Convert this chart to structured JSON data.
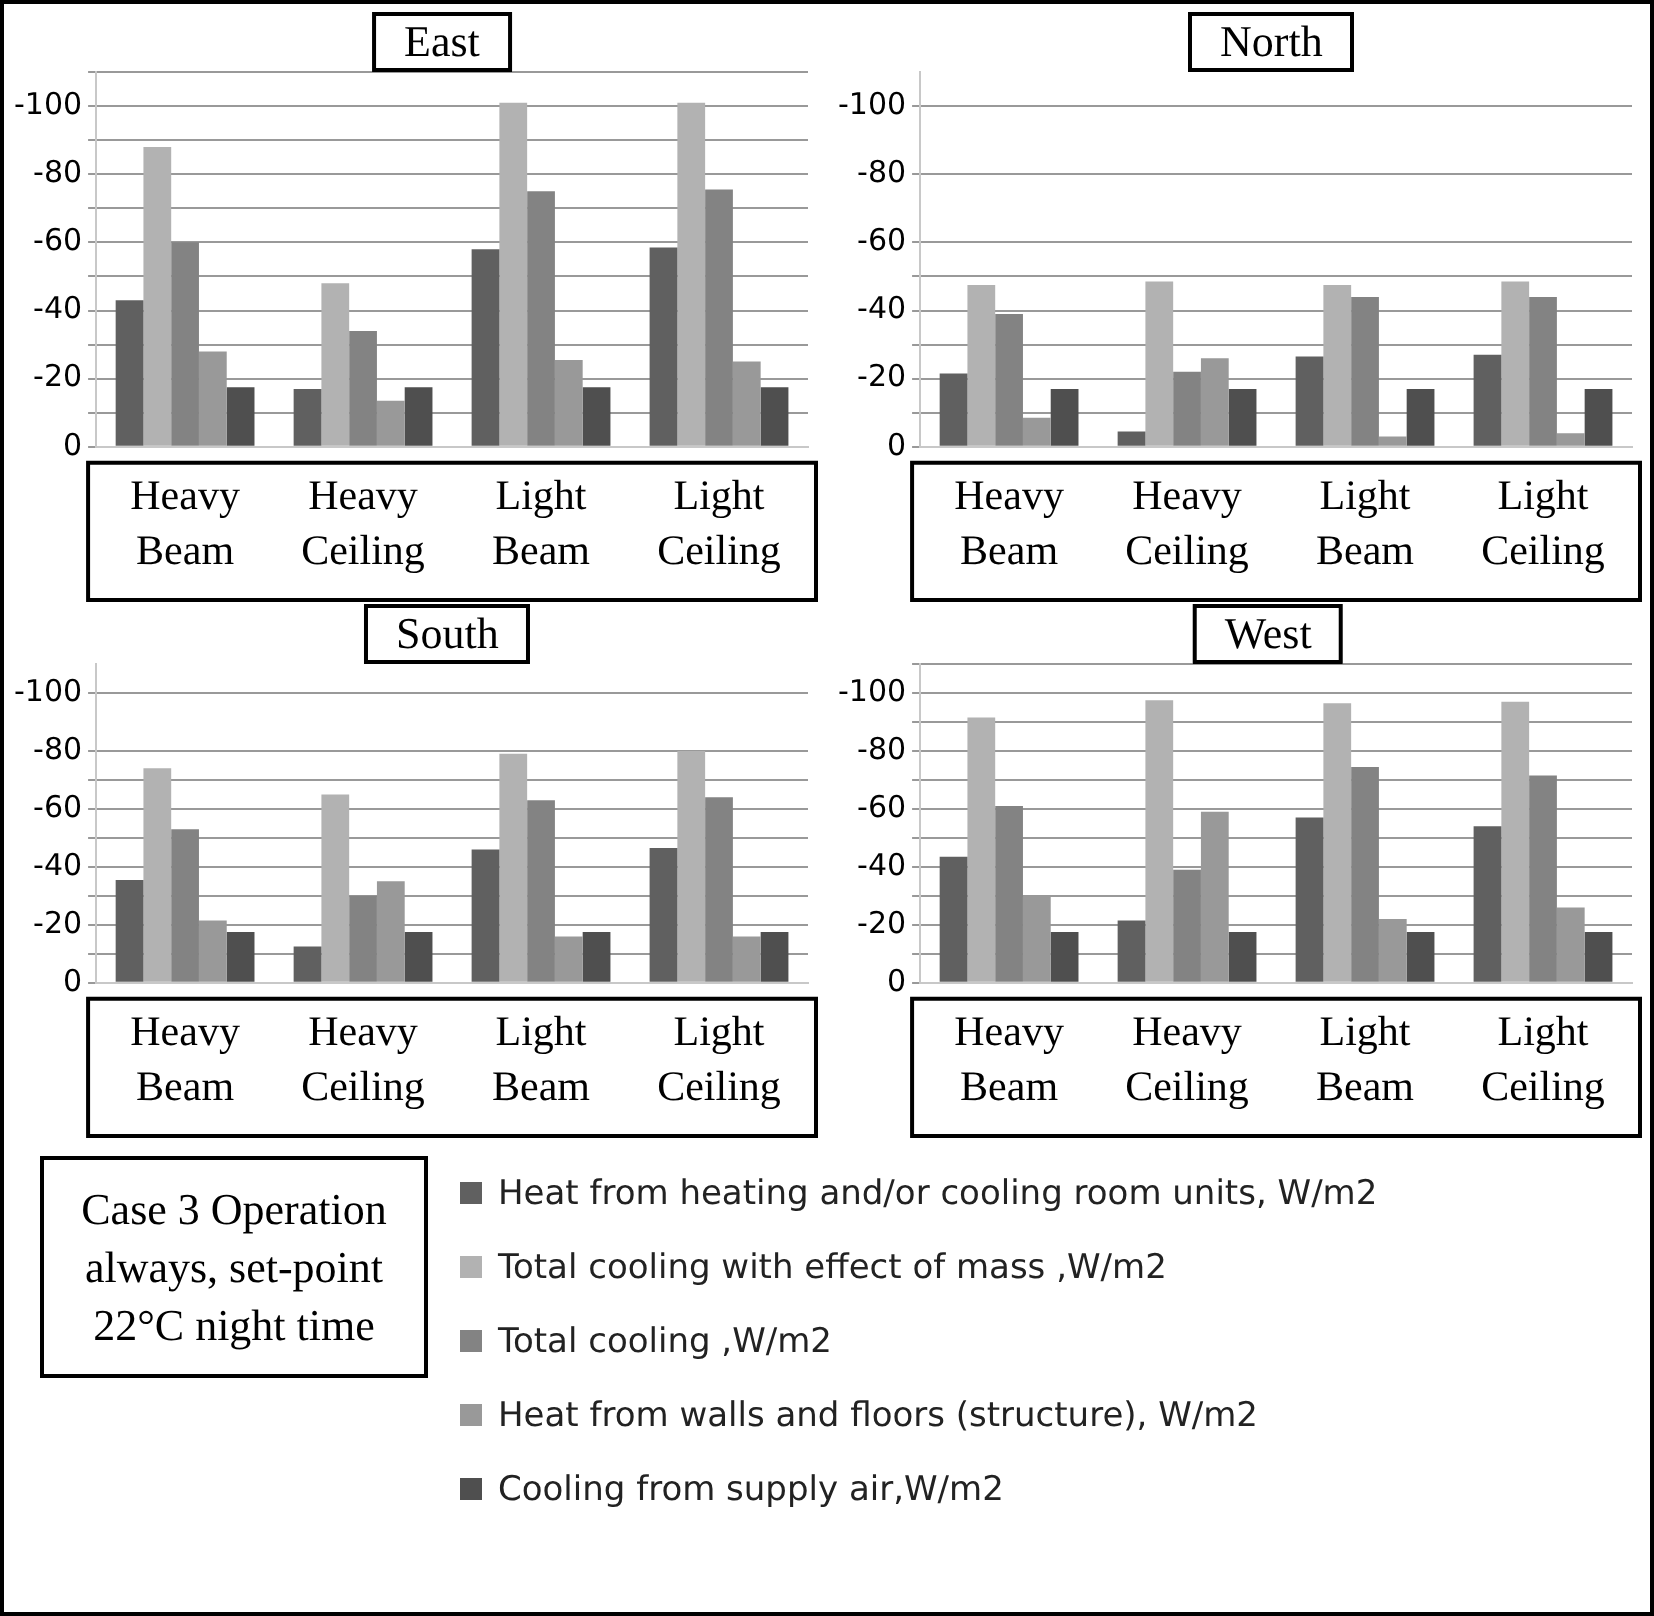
{
  "chart_data": [
    {
      "type": "bar",
      "title": "East",
      "categories": [
        "Heavy Beam",
        "Heavy Ceiling",
        "Light Beam",
        "Light Ceiling"
      ],
      "ylim": [
        0,
        -110
      ],
      "yticks": [
        0,
        {
          "value": -10,
          "label": null
        },
        -20,
        {
          "value": -30,
          "label": null
        },
        -40,
        {
          "value": -50,
          "label": null
        },
        -60,
        {
          "value": -70,
          "label": null
        },
        -80,
        {
          "value": -90,
          "label": null
        },
        -100,
        {
          "value": -110,
          "label": null
        }
      ],
      "grid": "y",
      "series": [
        {
          "color": "#606060",
          "values": [
            -43,
            -17,
            -58,
            -58.5
          ]
        },
        {
          "color": "#b2b2b2",
          "values": [
            -88,
            -48,
            -101,
            -101
          ]
        },
        {
          "color": "#838383",
          "values": [
            -60,
            -34,
            -75,
            -75.5
          ]
        },
        {
          "color": "#999999",
          "values": [
            -28,
            -13.5,
            -25.5,
            -25
          ]
        },
        {
          "color": "#4f4f4f",
          "values": [
            -17.5,
            -17.5,
            -17.5,
            -17.5
          ]
        }
      ]
    },
    {
      "type": "bar",
      "title": "North",
      "categories": [
        "Heavy Beam",
        "Heavy Ceiling",
        "Light Beam",
        "Light Ceiling"
      ],
      "ylim": [
        0,
        -110
      ],
      "yticks": [
        0,
        {
          "value": -10,
          "label": null
        },
        -20,
        {
          "value": -30,
          "label": null
        },
        -40,
        {
          "value": -50,
          "label": null
        },
        -60,
        -80,
        -100
      ],
      "grid": "y",
      "series": [
        {
          "color": "#606060",
          "values": [
            -21.5,
            -4.5,
            -26.5,
            -27
          ]
        },
        {
          "color": "#b2b2b2",
          "values": [
            -47.5,
            -48.5,
            -47.5,
            -48.5
          ]
        },
        {
          "color": "#838383",
          "values": [
            -39,
            -22,
            -44,
            -44
          ]
        },
        {
          "color": "#999999",
          "values": [
            -8.5,
            -26,
            -3,
            -4
          ]
        },
        {
          "color": "#4f4f4f",
          "values": [
            -17,
            -17,
            -17,
            -17
          ]
        }
      ]
    },
    {
      "type": "bar",
      "title": "South",
      "categories": [
        "Heavy Beam",
        "Heavy Ceiling",
        "Light Beam",
        "Light Ceiling"
      ],
      "ylim": [
        0,
        -110
      ],
      "yticks": [
        0,
        {
          "value": -10,
          "label": null
        },
        -20,
        {
          "value": -30,
          "label": null
        },
        -40,
        {
          "value": -50,
          "label": null
        },
        -60,
        {
          "value": -70,
          "label": null
        },
        -80,
        -100
      ],
      "grid": "y",
      "series": [
        {
          "color": "#606060",
          "values": [
            -35.5,
            -12.5,
            -46,
            -46.5
          ]
        },
        {
          "color": "#b2b2b2",
          "values": [
            -74,
            -65,
            -79,
            -80
          ]
        },
        {
          "color": "#838383",
          "values": [
            -53,
            -30,
            -63,
            -64
          ]
        },
        {
          "color": "#999999",
          "values": [
            -21.5,
            -35,
            -16,
            -16
          ]
        },
        {
          "color": "#4f4f4f",
          "values": [
            -17.5,
            -17.5,
            -17.5,
            -17.5
          ]
        }
      ]
    },
    {
      "type": "bar",
      "title": "West",
      "categories": [
        "Heavy Beam",
        "Heavy Ceiling",
        "Light Beam",
        "Light Ceiling"
      ],
      "ylim": [
        0,
        -110
      ],
      "yticks": [
        0,
        {
          "value": -10,
          "label": null
        },
        -20,
        {
          "value": -30,
          "label": null
        },
        -40,
        {
          "value": -50,
          "label": null
        },
        -60,
        {
          "value": -70,
          "label": null
        },
        -80,
        {
          "value": -90,
          "label": null
        },
        -100,
        {
          "value": -110,
          "label": null
        }
      ],
      "grid": "y",
      "legend": "bottom",
      "annotations": [
        "Case 3 Operation always, set-point 22°C night time"
      ],
      "series": [
        {
          "name": "Heat from heating and/or cooling room units, W/m2",
          "color": "#606060",
          "values": [
            -43.5,
            -21.5,
            -57,
            -54
          ]
        },
        {
          "name": "Total cooling with effect of mass ,W/m2",
          "color": "#b2b2b2",
          "values": [
            -91.5,
            -97.5,
            -96.5,
            -97
          ]
        },
        {
          "name": "Total cooling ,W/m2",
          "color": "#838383",
          "values": [
            -61,
            -39,
            -74.5,
            -71.5
          ]
        },
        {
          "name": "Heat from walls and floors (structure), W/m2",
          "color": "#999999",
          "values": [
            -30,
            -59,
            -22,
            -26
          ]
        },
        {
          "name": "Cooling from supply air,W/m2",
          "color": "#4f4f4f",
          "values": [
            -17.5,
            -17.5,
            -17.5,
            -17.5
          ]
        }
      ]
    }
  ]
}
